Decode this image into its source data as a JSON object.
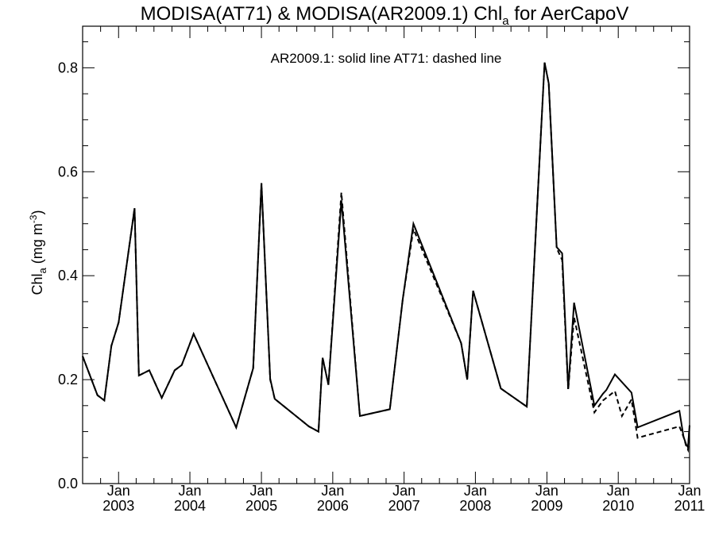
{
  "chart_data": {
    "type": "line",
    "title": {
      "prefix": "MODISA(AT71) & MODISA(AR2009.1)  Chl",
      "subscript": "a",
      "suffix": " for AerCapoV"
    },
    "annotation": "AR2009.1: solid line   AT71: dashed line",
    "ylabel": {
      "prefix": "Chl",
      "subscript": "a",
      "unit_prefix": " (mg m",
      "unit_superscript": "-3",
      "unit_suffix": ")"
    },
    "xlim": [
      "2002-07-01",
      "2011-01-01"
    ],
    "ylim": [
      0,
      0.88
    ],
    "y_ticks": [
      0.0,
      0.2,
      0.4,
      0.6,
      0.8
    ],
    "y_tick_labels": [
      "0.0",
      "0.2",
      "0.4",
      "0.6",
      "0.8"
    ],
    "x_ticks": [
      {
        "date": "2003-01-01",
        "month": "Jan",
        "year": "2003"
      },
      {
        "date": "2004-01-01",
        "month": "Jan",
        "year": "2004"
      },
      {
        "date": "2005-01-01",
        "month": "Jan",
        "year": "2005"
      },
      {
        "date": "2006-01-01",
        "month": "Jan",
        "year": "2006"
      },
      {
        "date": "2007-01-01",
        "month": "Jan",
        "year": "2007"
      },
      {
        "date": "2008-01-01",
        "month": "Jan",
        "year": "2008"
      },
      {
        "date": "2009-01-01",
        "month": "Jan",
        "year": "2009"
      },
      {
        "date": "2010-01-01",
        "month": "Jan",
        "year": "2010"
      },
      {
        "date": "2011-01-01",
        "month": "Jan",
        "year": "2011"
      }
    ],
    "grid": false,
    "series": [
      {
        "name": "AR2009.1",
        "style": "solid",
        "points": [
          [
            "2002-07-01",
            0.245
          ],
          [
            "2002-09-15",
            0.17
          ],
          [
            "2002-10-20",
            0.16
          ],
          [
            "2002-11-25",
            0.265
          ],
          [
            "2003-01-01",
            0.31
          ],
          [
            "2003-03-24",
            0.53
          ],
          [
            "2003-04-15",
            0.208
          ],
          [
            "2003-06-07",
            0.218
          ],
          [
            "2003-08-10",
            0.165
          ],
          [
            "2003-10-15",
            0.218
          ],
          [
            "2003-11-20",
            0.228
          ],
          [
            "2004-01-20",
            0.288
          ],
          [
            "2004-08-25",
            0.108
          ],
          [
            "2004-11-20",
            0.222
          ],
          [
            "2005-01-01",
            0.578
          ],
          [
            "2005-02-15",
            0.202
          ],
          [
            "2005-03-10",
            0.163
          ],
          [
            "2005-09-01",
            0.11
          ],
          [
            "2005-10-20",
            0.1
          ],
          [
            "2005-11-10",
            0.242
          ],
          [
            "2005-12-10",
            0.19
          ],
          [
            "2006-02-14",
            0.545
          ],
          [
            "2006-05-20",
            0.13
          ],
          [
            "2006-10-20",
            0.143
          ],
          [
            "2006-12-25",
            0.354
          ],
          [
            "2007-02-18",
            0.5
          ],
          [
            "2007-10-20",
            0.27
          ],
          [
            "2007-11-20",
            0.2
          ],
          [
            "2007-12-20",
            0.371
          ],
          [
            "2008-05-10",
            0.183
          ],
          [
            "2008-09-20",
            0.148
          ],
          [
            "2008-12-20",
            0.81
          ],
          [
            "2009-01-10",
            0.77
          ],
          [
            "2009-02-20",
            0.455
          ],
          [
            "2009-03-20",
            0.443
          ],
          [
            "2009-04-20",
            0.182
          ],
          [
            "2009-05-20",
            0.348
          ],
          [
            "2009-09-01",
            0.15
          ],
          [
            "2009-10-15",
            0.173
          ],
          [
            "2009-11-01",
            0.18
          ],
          [
            "2009-12-15",
            0.21
          ],
          [
            "2010-03-10",
            0.175
          ],
          [
            "2010-04-10",
            0.108
          ],
          [
            "2010-11-10",
            0.14
          ],
          [
            "2010-12-01",
            0.09
          ],
          [
            "2010-12-15",
            0.075
          ],
          [
            "2010-12-24",
            0.07
          ],
          [
            "2011-01-01",
            0.112
          ]
        ]
      },
      {
        "name": "AT71",
        "style": "dashed",
        "points": [
          [
            "2002-07-01",
            0.245
          ],
          [
            "2002-09-15",
            0.17
          ],
          [
            "2002-10-20",
            0.16
          ],
          [
            "2002-11-25",
            0.265
          ],
          [
            "2003-01-01",
            0.31
          ],
          [
            "2003-03-24",
            0.53
          ],
          [
            "2003-04-15",
            0.208
          ],
          [
            "2003-06-07",
            0.218
          ],
          [
            "2003-08-10",
            0.165
          ],
          [
            "2003-10-15",
            0.218
          ],
          [
            "2003-11-20",
            0.228
          ],
          [
            "2004-01-20",
            0.288
          ],
          [
            "2004-08-25",
            0.108
          ],
          [
            "2004-11-20",
            0.222
          ],
          [
            "2005-01-01",
            0.578
          ],
          [
            "2005-02-15",
            0.2
          ],
          [
            "2005-03-10",
            0.163
          ],
          [
            "2005-09-01",
            0.11
          ],
          [
            "2005-10-20",
            0.1
          ],
          [
            "2005-11-10",
            0.242
          ],
          [
            "2005-12-10",
            0.19
          ],
          [
            "2006-02-14",
            0.56
          ],
          [
            "2006-05-20",
            0.13
          ],
          [
            "2006-10-20",
            0.143
          ],
          [
            "2006-12-25",
            0.354
          ],
          [
            "2007-02-18",
            0.49
          ],
          [
            "2007-10-20",
            0.27
          ],
          [
            "2007-11-20",
            0.2
          ],
          [
            "2007-12-20",
            0.371
          ],
          [
            "2008-05-10",
            0.183
          ],
          [
            "2008-09-20",
            0.148
          ],
          [
            "2008-12-20",
            0.81
          ],
          [
            "2009-01-10",
            0.77
          ],
          [
            "2009-02-20",
            0.453
          ],
          [
            "2009-03-20",
            0.43
          ],
          [
            "2009-04-20",
            0.18
          ],
          [
            "2009-05-20",
            0.32
          ],
          [
            "2009-09-01",
            0.137
          ],
          [
            "2009-10-15",
            0.16
          ],
          [
            "2009-12-15",
            0.178
          ],
          [
            "2010-01-20",
            0.13
          ],
          [
            "2010-03-10",
            0.162
          ],
          [
            "2010-04-10",
            0.088
          ],
          [
            "2010-11-10",
            0.11
          ],
          [
            "2010-12-01",
            0.09
          ],
          [
            "2010-12-15",
            0.072
          ],
          [
            "2010-12-24",
            0.065
          ],
          [
            "2011-01-01",
            0.112
          ]
        ]
      }
    ]
  }
}
